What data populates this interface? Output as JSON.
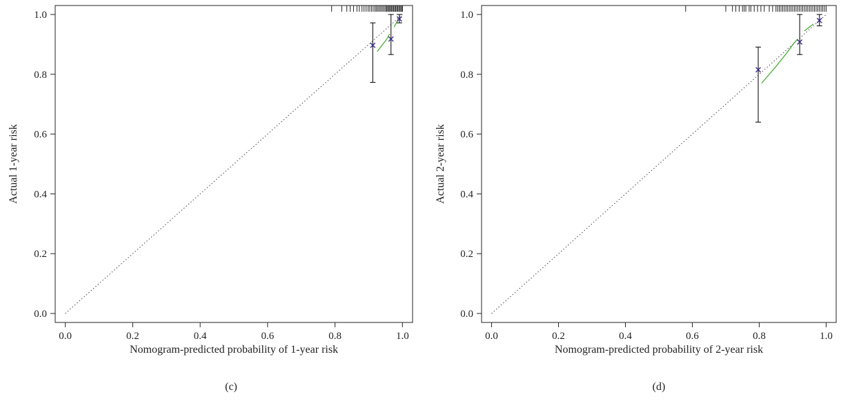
{
  "chart_data": [
    {
      "type": "scatter",
      "panel_label": "(c)",
      "xlabel": "Nomogram-predicted probability of 1-year risk",
      "ylabel": "Actual 1-year risk",
      "xlim": [
        -0.03,
        1.03
      ],
      "ylim": [
        -0.03,
        1.03
      ],
      "xticks": [
        0.0,
        0.2,
        0.4,
        0.6,
        0.8,
        1.0
      ],
      "yticks": [
        0.0,
        0.2,
        0.4,
        0.6,
        0.8,
        1.0
      ],
      "reference_line": [
        [
          0,
          0
        ],
        [
          1,
          1
        ]
      ],
      "points": [
        {
          "x": 0.912,
          "y": 0.897,
          "lower": 0.773,
          "upper": 0.972
        },
        {
          "x": 0.966,
          "y": 0.918,
          "lower": 0.866,
          "upper": 1.0
        },
        {
          "x": 0.991,
          "y": 0.985,
          "lower": 0.972,
          "upper": 1.0
        }
      ],
      "smooth_line": [
        [
          0.925,
          0.876
        ],
        [
          0.952,
          0.915
        ],
        [
          0.962,
          0.935
        ]
      ],
      "smooth_line_2": [
        [
          0.975,
          0.958
        ],
        [
          0.988,
          0.984
        ]
      ],
      "rug_ticks": [
        0.79,
        0.82,
        0.835,
        0.845,
        0.855,
        0.865,
        0.872,
        0.88,
        0.886,
        0.892,
        0.898,
        0.903,
        0.908,
        0.913,
        0.918,
        0.922,
        0.926,
        0.93,
        0.934,
        0.938,
        0.942,
        0.946,
        0.95,
        0.953,
        0.956,
        0.959,
        0.962,
        0.965,
        0.968,
        0.971,
        0.974,
        0.977,
        0.98,
        0.983,
        0.986,
        0.989,
        0.992,
        0.995,
        0.998,
        1.0
      ],
      "colors": {
        "points": "#3a2e8c",
        "smooth": "#4caf3a",
        "errorbars": "#111111",
        "reference": "#444444"
      }
    },
    {
      "type": "scatter",
      "panel_label": "(d)",
      "xlabel": "Nomogram-predicted probability of 2-year risk",
      "ylabel": "Actual 2-year risk",
      "xlim": [
        -0.03,
        1.03
      ],
      "ylim": [
        -0.03,
        1.03
      ],
      "xticks": [
        0.0,
        0.2,
        0.4,
        0.6,
        0.8,
        1.0
      ],
      "yticks": [
        0.0,
        0.2,
        0.4,
        0.6,
        0.8,
        1.0
      ],
      "reference_line": [
        [
          0,
          0
        ],
        [
          1,
          1
        ]
      ],
      "points": [
        {
          "x": 0.797,
          "y": 0.815,
          "lower": 0.64,
          "upper": 0.891
        },
        {
          "x": 0.921,
          "y": 0.908,
          "lower": 0.866,
          "upper": 1.0
        },
        {
          "x": 0.98,
          "y": 0.98,
          "lower": 0.962,
          "upper": 1.0
        }
      ],
      "smooth_line": [
        [
          0.807,
          0.77
        ],
        [
          0.85,
          0.826
        ],
        [
          0.88,
          0.868
        ],
        [
          0.905,
          0.906
        ],
        [
          0.915,
          0.918
        ]
      ],
      "smooth_line_2": [
        [
          0.935,
          0.945
        ],
        [
          0.962,
          0.968
        ]
      ],
      "rug_ticks": [
        0.58,
        0.7,
        0.72,
        0.73,
        0.74,
        0.75,
        0.755,
        0.76,
        0.77,
        0.775,
        0.785,
        0.795,
        0.805,
        0.815,
        0.83,
        0.84,
        0.85,
        0.855,
        0.86,
        0.865,
        0.87,
        0.875,
        0.88,
        0.885,
        0.89,
        0.895,
        0.9,
        0.905,
        0.91,
        0.915,
        0.92,
        0.925,
        0.93,
        0.935,
        0.94,
        0.945,
        0.95,
        0.955,
        0.96,
        0.965,
        0.97,
        0.975,
        0.98,
        0.985,
        0.99,
        0.995,
        1.0
      ],
      "colors": {
        "points": "#3a2e8c",
        "smooth": "#4caf3a",
        "errorbars": "#111111",
        "reference": "#444444"
      }
    }
  ]
}
